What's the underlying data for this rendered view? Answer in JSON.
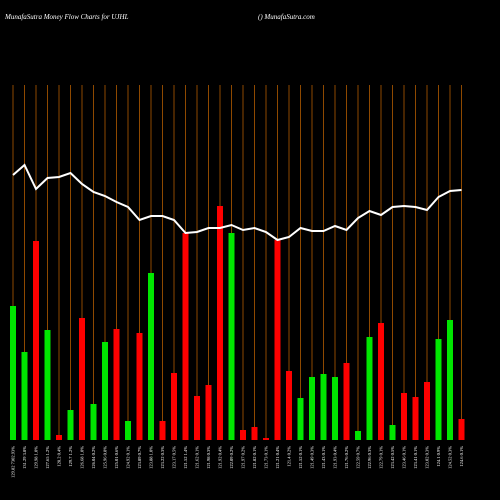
{
  "chart_data": {
    "type": "bar",
    "title": "MunafaSutra  Money Flow  Charts for UJHL",
    "subtitle": "() MunafaSutra.com",
    "categories": [
      "129.82 7302.93%",
      "131.29 3.8%",
      "129.98 1.0%",
      "127.65 1.2%",
      "128.2 0.4%",
      "129.7 1.2%",
      "126.68 1.0%",
      "126.04 0.2%",
      "125.96 0.8%",
      "125.01 0.6%",
      "124.92 0.1%",
      "123.89 0.7%",
      "123.88 1.0%",
      "123.22 0.3%",
      "123.17 0.5%",
      "121.52 1.4%",
      "121.62 0.1%",
      "121.98 0.3%",
      "121.92 0.4%",
      "122.09 0.2%",
      "121.97 0.2%",
      "121.82 0.1%",
      "121.73 0.1%",
      "121.21 0.4%",
      "121.4 0.2%",
      "121.52 0.1%",
      "121.49 0.3%",
      "121.43 0.1%",
      "121.93 0.4%",
      "121.76 0.2%",
      "122.59 0.7%",
      "122.96 0.3%",
      "122.79 0.1%",
      "123.42 0.5%",
      "123.46 0.1%",
      "123.41 0.1%",
      "123.02 0.3%",
      "124.1 0.9%",
      "124.52 0.3%",
      "124.6 0.1%"
    ],
    "series": [
      {
        "name": "Money Flow",
        "values": [
          134,
          88,
          199,
          110,
          5,
          30,
          122,
          36,
          98,
          111,
          19,
          107,
          167,
          19,
          67,
          207,
          44,
          55,
          234,
          207,
          10,
          13,
          2,
          200,
          69,
          42,
          63,
          66,
          63,
          77,
          9,
          103,
          117,
          15,
          47,
          43,
          58,
          101,
          120,
          21
        ],
        "flow": [
          "up",
          "up",
          "down",
          "up",
          "down",
          "up",
          "down",
          "up",
          "up",
          "down",
          "up",
          "down",
          "up",
          "down",
          "down",
          "down",
          "down",
          "down",
          "down",
          "up",
          "down",
          "down",
          "down",
          "down",
          "down",
          "up",
          "up",
          "up",
          "up",
          "down",
          "up",
          "up",
          "down",
          "up",
          "down",
          "down",
          "down",
          "up",
          "up",
          "down"
        ]
      },
      {
        "name": "Price",
        "values": [
          265,
          275,
          251,
          262,
          263,
          267,
          256,
          248,
          244,
          238,
          233,
          220,
          224,
          224,
          220,
          207,
          208,
          212,
          212,
          215,
          210,
          212,
          208,
          200,
          203,
          212,
          209,
          209,
          214,
          210,
          222,
          229,
          225,
          233,
          234,
          233,
          230,
          243,
          249,
          250
        ]
      }
    ],
    "colors": {
      "up": "#00e600",
      "down": "#ff0000",
      "line": "#ffffff",
      "grid": "#b25c00"
    },
    "ylim": [
      0,
      355
    ]
  }
}
